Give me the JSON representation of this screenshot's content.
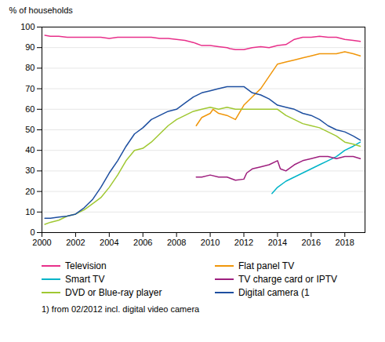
{
  "chart_data": {
    "type": "line",
    "ylabel": "% of households",
    "footnote": "1) from 02/2012 incl. digital video camera",
    "xlim": [
      2000.0,
      2019.2
    ],
    "xticks": [
      2000,
      2002,
      2004,
      2006,
      2008,
      2010,
      2012,
      2014,
      2016,
      2018
    ],
    "ylim": [
      0,
      100
    ],
    "yticks": [
      0,
      10,
      20,
      30,
      40,
      50,
      60,
      70,
      80,
      90,
      100
    ],
    "grid": "y",
    "legend": "bottom",
    "series": [
      {
        "name": "Television",
        "color": "#e8308a",
        "x": [
          2000.17,
          2000.5,
          2001.0,
          2001.5,
          2002.0,
          2002.5,
          2003.0,
          2003.5,
          2004.0,
          2004.5,
          2005.0,
          2005.5,
          2006.0,
          2006.5,
          2007.0,
          2007.5,
          2008.0,
          2008.5,
          2009.0,
          2009.17,
          2009.5,
          2010.0,
          2010.5,
          2011.0,
          2011.17,
          2011.5,
          2012.0,
          2012.5,
          2013.0,
          2013.5,
          2014.0,
          2014.5,
          2015.0,
          2015.5,
          2016.0,
          2016.5,
          2017.0,
          2017.5,
          2018.0,
          2018.5,
          2018.92
        ],
        "values": [
          96,
          95.5,
          95.5,
          95,
          95,
          95,
          95,
          95,
          94.5,
          95,
          95,
          95,
          95,
          95,
          94.5,
          94.5,
          94,
          93.5,
          92.5,
          92,
          91,
          91,
          90.5,
          90,
          89.5,
          89,
          89,
          90,
          90.5,
          90,
          91,
          91.5,
          94,
          95,
          95,
          95.5,
          95,
          95,
          94,
          93.5,
          93
        ]
      },
      {
        "name": "Flat panel TV",
        "color": "#f0960a",
        "x": [
          2009.17,
          2009.5,
          2010.0,
          2010.17,
          2010.5,
          2011.0,
          2011.5,
          2012.0,
          2012.5,
          2013.0,
          2013.5,
          2014.0,
          2014.5,
          2015.0,
          2015.5,
          2016.0,
          2016.5,
          2017.0,
          2017.5,
          2018.0,
          2018.5,
          2018.92
        ],
        "values": [
          52,
          56,
          58,
          60,
          58,
          57,
          55,
          62,
          66,
          70,
          76,
          82,
          83,
          84,
          85,
          86,
          87,
          87,
          87,
          88,
          87,
          86
        ]
      },
      {
        "name": "Smart TV",
        "color": "#00b4c8",
        "x": [
          2013.67,
          2014.0,
          2014.5,
          2015.0,
          2015.5,
          2016.0,
          2016.5,
          2017.0,
          2017.5,
          2018.0,
          2018.5,
          2018.92
        ],
        "values": [
          19,
          22,
          25,
          27,
          29,
          31,
          33,
          35,
          37,
          40,
          42,
          44
        ]
      },
      {
        "name": "TV charge card or IPTV",
        "color": "#9e1f7e",
        "x": [
          2009.17,
          2009.5,
          2010.0,
          2010.5,
          2011.0,
          2011.5,
          2012.0,
          2012.17,
          2012.5,
          2013.0,
          2013.5,
          2014.0,
          2014.17,
          2014.5,
          2015.0,
          2015.5,
          2016.0,
          2016.5,
          2017.0,
          2017.5,
          2018.0,
          2018.5,
          2018.92
        ],
        "values": [
          27,
          27,
          28,
          27,
          27,
          25.5,
          26,
          29,
          31,
          32,
          33,
          35,
          31,
          30,
          33,
          35,
          36,
          37,
          37,
          36,
          37,
          37,
          36
        ]
      },
      {
        "name": "DVD or Blue-ray player",
        "color": "#a0c832",
        "x": [
          2000.17,
          2000.5,
          2001.0,
          2001.5,
          2002.0,
          2002.5,
          2003.0,
          2003.5,
          2004.0,
          2004.5,
          2005.0,
          2005.5,
          2006.0,
          2006.5,
          2007.0,
          2007.5,
          2008.0,
          2008.5,
          2009.0,
          2009.5,
          2010.0,
          2010.5,
          2011.0,
          2011.5,
          2012.0,
          2012.5,
          2013.0,
          2013.5,
          2014.0,
          2014.5,
          2015.0,
          2015.5,
          2016.0,
          2016.5,
          2017.0,
          2017.5,
          2018.0,
          2018.5,
          2018.92
        ],
        "values": [
          4,
          5,
          6,
          8,
          9,
          11,
          14,
          17,
          22,
          28,
          35,
          40,
          41,
          44,
          48,
          52,
          55,
          57,
          59,
          60,
          61,
          60,
          61,
          60,
          60,
          60,
          60,
          60,
          60,
          57,
          55,
          53,
          52,
          51,
          49,
          47,
          44,
          43,
          42
        ]
      },
      {
        "name": "Digital camera (1",
        "color": "#1e4fa0",
        "x": [
          2000.17,
          2000.5,
          2001.0,
          2001.5,
          2002.0,
          2002.5,
          2003.0,
          2003.5,
          2004.0,
          2004.5,
          2005.0,
          2005.5,
          2006.0,
          2006.5,
          2007.0,
          2007.5,
          2008.0,
          2008.5,
          2009.0,
          2009.5,
          2010.0,
          2010.5,
          2011.0,
          2011.5,
          2012.0,
          2012.5,
          2013.0,
          2013.5,
          2014.0,
          2014.5,
          2015.0,
          2015.5,
          2016.0,
          2016.5,
          2017.0,
          2017.5,
          2018.0,
          2018.5,
          2018.92
        ],
        "values": [
          7,
          7,
          7.5,
          8,
          9,
          12,
          16,
          22,
          29,
          35,
          42,
          48,
          51,
          55,
          57,
          59,
          60,
          63,
          66,
          68,
          69,
          70,
          71,
          71,
          71,
          68,
          67,
          65,
          62,
          61,
          60,
          58,
          57,
          55,
          52,
          50,
          49,
          47,
          45
        ]
      }
    ]
  }
}
